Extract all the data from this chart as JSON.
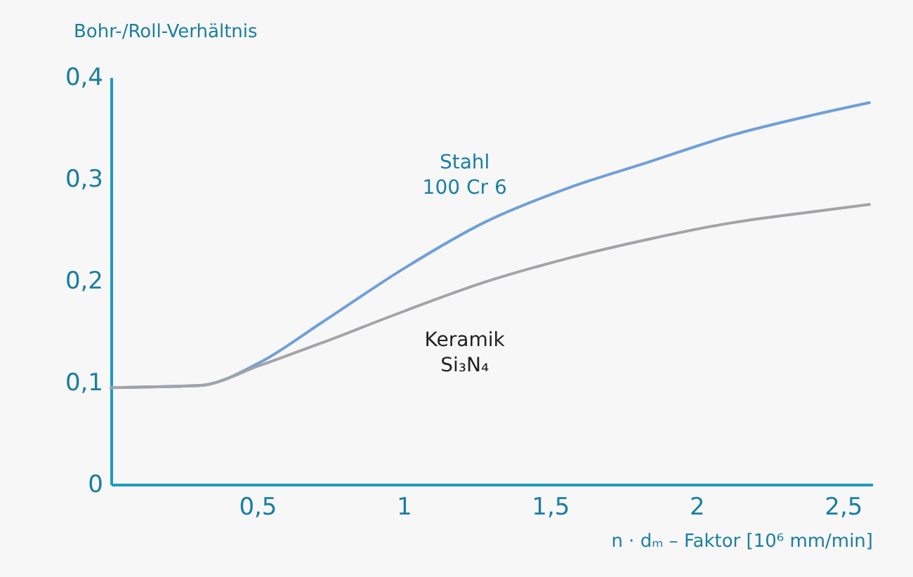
{
  "chart_data": {
    "type": "line",
    "xlabel": "n · dₘ – Faktor [10⁶ mm/min]",
    "ylabel": "Bohr-/Roll-Verhältnis",
    "xlim": [
      0,
      2.6
    ],
    "ylim": [
      0,
      0.4
    ],
    "xticks": [
      {
        "value": 0.5,
        "label": "0,5"
      },
      {
        "value": 1,
        "label": "1"
      },
      {
        "value": 1.5,
        "label": "1,5"
      },
      {
        "value": 2,
        "label": "2"
      },
      {
        "value": 2.5,
        "label": "2,5"
      }
    ],
    "yticks": [
      {
        "value": 0,
        "label": "0"
      },
      {
        "value": 0.1,
        "label": "0,1"
      },
      {
        "value": 0.2,
        "label": "0,2"
      },
      {
        "value": 0.3,
        "label": "0,3"
      },
      {
        "value": 0.4,
        "label": "0,4"
      }
    ],
    "x": [
      0,
      0.3,
      0.51,
      0.72,
      1.0,
      1.28,
      1.56,
      1.84,
      2.12,
      2.4,
      2.59
    ],
    "series": [
      {
        "name": "Stahl\n100 Cr 6",
        "color": "#6fa0d8",
        "values": [
          0.095,
          0.097,
          0.12,
          0.159,
          0.212,
          0.258,
          0.291,
          0.317,
          0.343,
          0.363,
          0.375
        ]
      },
      {
        "name": "Keramik\nSi₃N₄",
        "color": "#a3a3a8",
        "values": [
          0.095,
          0.097,
          0.117,
          0.139,
          0.17,
          0.199,
          0.222,
          0.241,
          0.257,
          0.268,
          0.275
        ]
      }
    ],
    "grid": false,
    "marker": "none",
    "line_style": "solid"
  }
}
